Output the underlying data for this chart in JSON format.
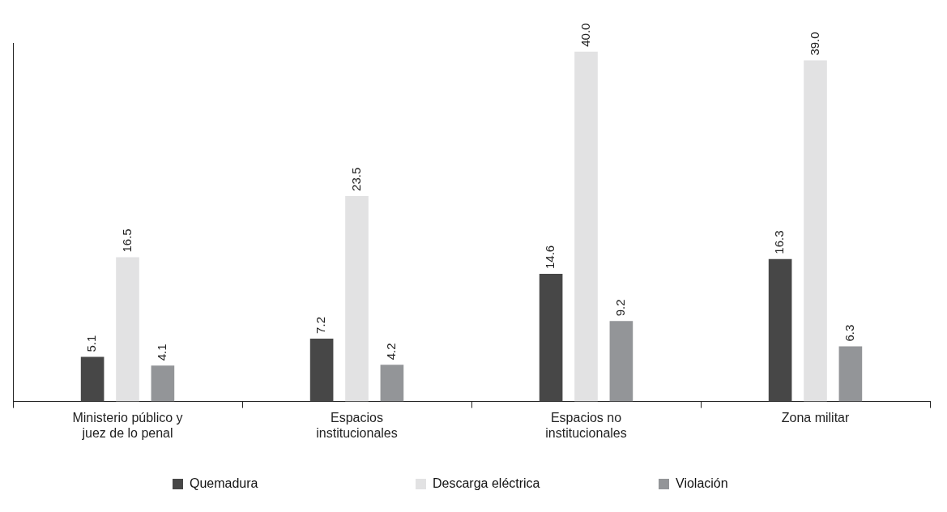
{
  "chart_data": {
    "type": "bar",
    "categories": [
      "Ministerio público y juez de lo penal",
      "Espacios institucionales",
      "Espacios no institucionales",
      "Zona militar"
    ],
    "ylim": [
      0,
      41
    ],
    "legend": "bottom",
    "series": [
      {
        "name": "Quemadura",
        "color": "#474747",
        "values": [
          5.1,
          7.2,
          14.6,
          16.3
        ],
        "value_labels": [
          "5.1",
          "7.2",
          "14.6",
          "16.3"
        ]
      },
      {
        "name": "Descarga eléctrica",
        "color": "#e2e2e3",
        "values": [
          16.5,
          23.5,
          40.0,
          39.0
        ],
        "value_labels": [
          "16.5",
          "23.5",
          "40.0",
          "39.0"
        ]
      },
      {
        "name": "Violación",
        "color": "#939598",
        "values": [
          4.1,
          4.2,
          9.2,
          6.3
        ],
        "value_labels": [
          "4.1",
          "4.2",
          "9.2",
          "6.3"
        ]
      }
    ]
  }
}
